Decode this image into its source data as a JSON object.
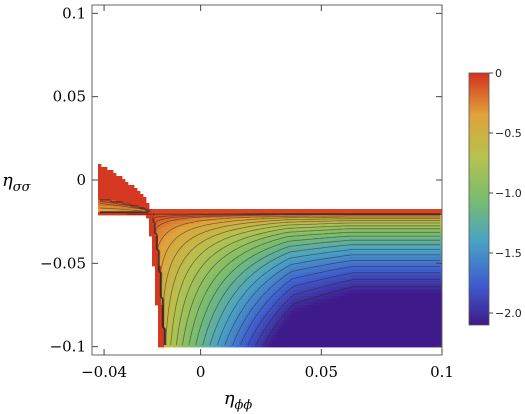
{
  "chart_data": {
    "type": "heatmap",
    "title": "",
    "xlabel": "η",
    "xlabel_sub": "ϕϕ",
    "ylabel": "η",
    "ylabel_sub": "σσ",
    "xlim": [
      -0.045,
      0.1
    ],
    "ylim": [
      -0.105,
      0.105
    ],
    "x_ticks": [
      {
        "value": -0.04,
        "label": "-0.04"
      },
      {
        "value": 0,
        "label": "0"
      },
      {
        "value": 0.05,
        "label": "0.05"
      },
      {
        "value": 0.1,
        "label": "0.1"
      }
    ],
    "y_ticks": [
      {
        "value": 0.1,
        "label": "0.1"
      },
      {
        "value": 0.05,
        "label": "0.05"
      },
      {
        "value": 0,
        "label": "0"
      },
      {
        "value": -0.05,
        "label": "-0.05"
      },
      {
        "value": -0.1,
        "label": "-0.1"
      }
    ],
    "colorbar": {
      "range": [
        -2.1,
        0
      ],
      "ticks": [
        {
          "value": 0,
          "label": "0"
        },
        {
          "value": -0.5,
          "label": "-0.5"
        },
        {
          "value": -1.0,
          "label": "-1.0"
        },
        {
          "value": -1.5,
          "label": "-1.5"
        },
        {
          "value": -2.0,
          "label": "-2.0"
        }
      ],
      "colors": [
        "#3f1a8a",
        "#3f5fcf",
        "#4aa3c4",
        "#79bd6d",
        "#b6c24e",
        "#e0a33b",
        "#d4311f"
      ]
    },
    "field": {
      "x_range": [
        -0.0425,
        0.1
      ],
      "y_range": [
        -0.1,
        0.01
      ],
      "pinch_point": [
        -0.0205,
        -0.0195
      ],
      "lower_boundary_y": -0.0205,
      "upper_band_top_y": -0.018,
      "contour_levels": [
        -0.05,
        -0.1,
        -0.15,
        -0.2,
        -0.3,
        -0.4,
        -0.5,
        -0.6,
        -0.7,
        -0.8,
        -0.9,
        -1.0,
        -1.1,
        -1.2,
        -1.3,
        -1.4,
        -1.5,
        -1.6,
        -1.7,
        -1.8,
        -1.9,
        -2.0
      ]
    }
  }
}
